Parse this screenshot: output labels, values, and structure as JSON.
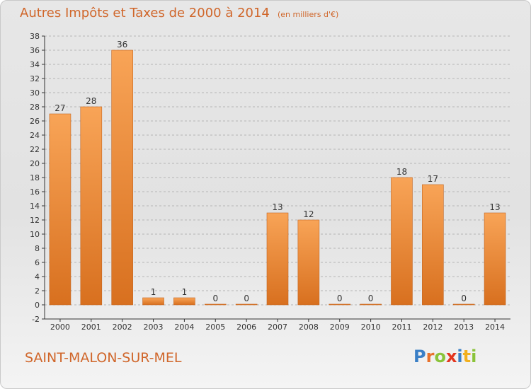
{
  "title": "Autres Impôts et Taxes de 2000 à 2014",
  "unit_note": "(en milliers d'€)",
  "commune": "SAINT-MALON-SUR-MEL",
  "logo": {
    "text": "Proxiti",
    "letters": [
      {
        "char": "P",
        "color": "#3a7fc6"
      },
      {
        "char": "r",
        "color": "#e8712b"
      },
      {
        "char": "o",
        "color": "#8ac33a"
      },
      {
        "char": "x",
        "color": "#e3361f"
      },
      {
        "char": "i",
        "color": "#3a7fc6"
      },
      {
        "char": "t",
        "color": "#f2b01e"
      },
      {
        "char": "i",
        "color": "#8ac33a"
      }
    ]
  },
  "colors": {
    "bar_light": "#f8a457",
    "bar_dark": "#d8701f",
    "text_accent": "#d0662a",
    "axis": "#333333",
    "grid": "#b5b5b5"
  },
  "chart_data": {
    "type": "bar",
    "categories": [
      "2000",
      "2001",
      "2002",
      "2003",
      "2004",
      "2005",
      "2006",
      "2007",
      "2008",
      "2009",
      "2010",
      "2011",
      "2012",
      "2013",
      "2014"
    ],
    "values": [
      27,
      28,
      36,
      1,
      1,
      0,
      0,
      13,
      12,
      0,
      0,
      18,
      17,
      0,
      13
    ],
    "ylim": [
      -2,
      38
    ],
    "yticks": [
      -2,
      0,
      2,
      4,
      6,
      8,
      10,
      12,
      14,
      16,
      18,
      20,
      22,
      24,
      26,
      28,
      30,
      32,
      34,
      36,
      38
    ],
    "grid": "horizontal dashed",
    "data_labels": true
  }
}
